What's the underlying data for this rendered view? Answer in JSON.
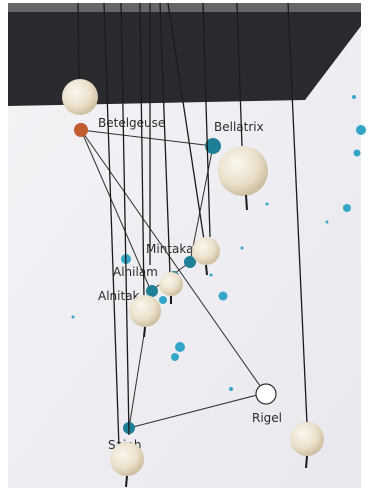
{
  "photo": {
    "stars": {
      "betelgeuse": "Betelgeuse",
      "bellatrix": "Bellatrix",
      "mintaka": "Mintaka",
      "alnilam": "Alnilam",
      "alnitak": "Alnitak",
      "rigel": "Rigel",
      "saiph": "Saiph"
    },
    "colors": {
      "wall": "#2a2a2e",
      "paper": "#f1f0f4",
      "star_teal": "#1e7f96",
      "star_light_blue": "#33a6c8",
      "betelgeuse_red": "#c05a2f",
      "bead": "#efe6d2",
      "string": "#1b1b1b"
    }
  }
}
